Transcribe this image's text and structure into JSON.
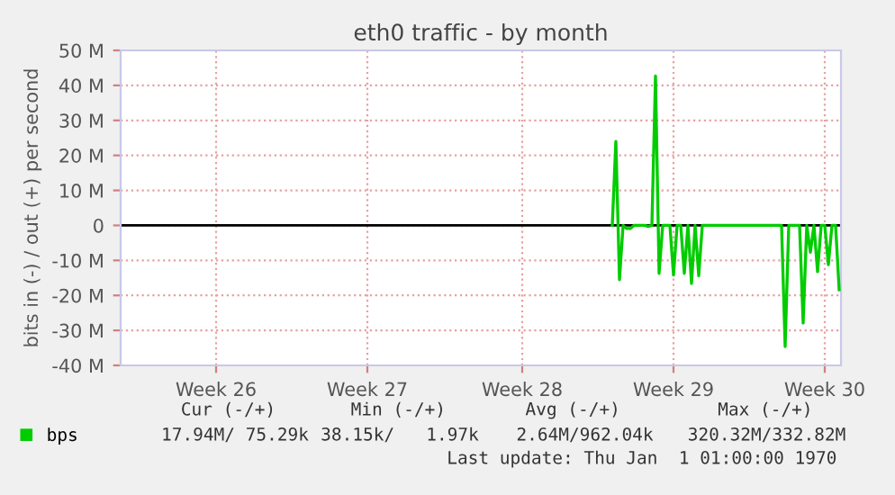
{
  "chart_data": {
    "type": "line",
    "title": "eth0 traffic - by month",
    "ylabel": "bits in (-) / out (+) per second",
    "categories": [
      null,
      null,
      null,
      null,
      null,
      null,
      null,
      null,
      null,
      null,
      null,
      null,
      null,
      null,
      null,
      null,
      null,
      null,
      null,
      null,
      null,
      null,
      null,
      null,
      null,
      null,
      "Week 26",
      null,
      null,
      null,
      null,
      null,
      null,
      null,
      null,
      null,
      null,
      null,
      null,
      null,
      null,
      null,
      null,
      null,
      null,
      null,
      null,
      null,
      null,
      null,
      null,
      null,
      null,
      null,
      null,
      null,
      null,
      null,
      null,
      null,
      null,
      null,
      null,
      null,
      null,
      null,
      null,
      null,
      "Week 27",
      null,
      null,
      null,
      null,
      null,
      null,
      null,
      null,
      null,
      null,
      null,
      null,
      null,
      null,
      null,
      null,
      null,
      null,
      null,
      null,
      null,
      null,
      null,
      null,
      null,
      null,
      null,
      null,
      null,
      null,
      null,
      null,
      null,
      null,
      null,
      null,
      null,
      null,
      null,
      null,
      null,
      null,
      "Week 28",
      null,
      null,
      null,
      null,
      null,
      null,
      null,
      null,
      null,
      null,
      null,
      null,
      null,
      null,
      null,
      null,
      null,
      null,
      null,
      null,
      null,
      null,
      null,
      null,
      null,
      null,
      null,
      null,
      null,
      null,
      null,
      null,
      null,
      null,
      null,
      null,
      null,
      null,
      null,
      null,
      null,
      "Week 29",
      null,
      null,
      null,
      null,
      null,
      null,
      null,
      null,
      null,
      null,
      null,
      null,
      null,
      null,
      null,
      null,
      null,
      null,
      null,
      null,
      null,
      null,
      null,
      null,
      null,
      null,
      null,
      null,
      null,
      null,
      null,
      null,
      null,
      null,
      null,
      null,
      null,
      null,
      null,
      null,
      null,
      "Week 30",
      null,
      null,
      null,
      null
    ],
    "ylim": [
      -40,
      50
    ],
    "yticks": [
      {
        "value": -40,
        "label": "-40 M"
      },
      {
        "value": -30,
        "label": "-30 M"
      },
      {
        "value": -20,
        "label": "-20 M"
      },
      {
        "value": -10,
        "label": "-10 M"
      },
      0,
      {
        "value": 10,
        "label": "10 M"
      },
      {
        "value": 20,
        "label": "20 M"
      },
      {
        "value": 30,
        "label": "30 M"
      },
      {
        "value": 40,
        "label": "40 M"
      },
      {
        "value": 50,
        "label": "50 M"
      }
    ],
    "grid": true,
    "legend": "bottom left",
    "marker": "none",
    "line_style": "solid",
    "ref_lines": [
      {
        "axis": "y",
        "value": 0,
        "color": "#000000"
      }
    ],
    "series": [
      {
        "name": "bps",
        "color": "#00cc00",
        "values": [
          null,
          null,
          null,
          null,
          null,
          null,
          null,
          null,
          null,
          null,
          null,
          null,
          null,
          null,
          null,
          null,
          null,
          null,
          null,
          null,
          null,
          null,
          null,
          null,
          null,
          null,
          null,
          null,
          null,
          null,
          null,
          null,
          null,
          null,
          null,
          null,
          null,
          null,
          null,
          null,
          null,
          null,
          null,
          null,
          null,
          null,
          null,
          null,
          null,
          null,
          null,
          null,
          null,
          null,
          null,
          null,
          null,
          null,
          null,
          null,
          null,
          null,
          null,
          null,
          null,
          null,
          null,
          null,
          null,
          null,
          null,
          null,
          null,
          null,
          null,
          null,
          null,
          null,
          null,
          null,
          null,
          null,
          null,
          null,
          null,
          null,
          null,
          null,
          null,
          null,
          null,
          null,
          null,
          null,
          null,
          null,
          null,
          null,
          null,
          null,
          null,
          null,
          null,
          null,
          null,
          null,
          null,
          null,
          null,
          null,
          null,
          null,
          null,
          null,
          null,
          null,
          null,
          null,
          null,
          null,
          null,
          null,
          null,
          null,
          null,
          null,
          null,
          null,
          null,
          null,
          null,
          null,
          null,
          null,
          null,
          null,
          0,
          24,
          -15.5,
          0,
          -0.9,
          -0.9,
          0,
          0,
          0,
          0,
          -0.3,
          0,
          42.7,
          -13.7,
          0,
          0,
          0,
          -14.2,
          0,
          0,
          -13.7,
          0,
          -16.6,
          0,
          -14.4,
          0,
          0,
          0,
          0,
          0,
          0,
          0,
          0,
          0,
          0,
          0,
          0,
          0,
          0,
          0,
          0,
          0,
          0,
          0,
          0,
          0,
          0,
          0,
          -34.6,
          0,
          0,
          0,
          0,
          -27.9,
          0,
          -7.7,
          0,
          -13.2,
          0,
          0,
          -11.2,
          0,
          0,
          -18.4
        ]
      }
    ],
    "annotations": [
      "Cur (-/+)",
      "Min (-/+)",
      "Avg (-/+)",
      "Max (-/+)",
      "17.94M/ 75.29k",
      "38.15k/   1.97k",
      "2.64M/962.04k",
      "320.32M/332.82M",
      "Last update: Thu Jan  1 01:00:00 1970"
    ]
  }
}
